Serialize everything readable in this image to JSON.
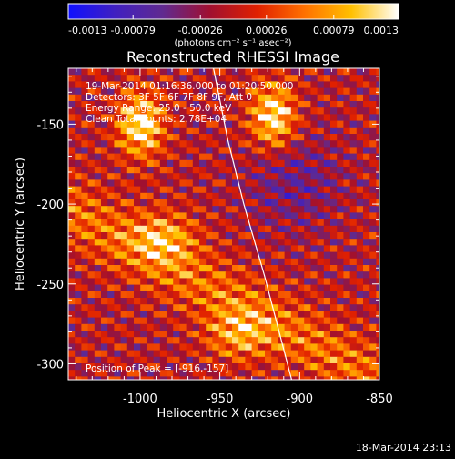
{
  "colorbar": {
    "tick_labels": [
      "-0.0013",
      "-0.00079",
      "-0.00026",
      "0.00026",
      "0.00079",
      "0.0013"
    ],
    "tick_values": [
      -0.0013,
      -0.00079,
      -0.00026,
      0.00026,
      0.00079,
      0.0013
    ],
    "range": [
      -0.0013,
      0.0013
    ],
    "units_label": "(photons cm⁻² s⁻¹ asec⁻²)",
    "colormap": [
      "#1010ff",
      "#4020c0",
      "#602a90",
      "#a01030",
      "#e02000",
      "#ff7000",
      "#ffc000",
      "#ffffff"
    ]
  },
  "chart_data": {
    "type": "heatmap",
    "title": "Reconstructed RHESSI Image",
    "xlabel": "Heliocentric X (arcsec)",
    "ylabel": "Heliocentric Y (arcsec)",
    "xlim": [
      -1045,
      -850
    ],
    "ylim": [
      -310,
      -115
    ],
    "xticks": [
      -1000,
      -950,
      -900,
      -850
    ],
    "xtick_labels": [
      "-1000",
      "-950",
      "-900",
      "-850"
    ],
    "yticks": [
      -300,
      -250,
      -200,
      -150
    ],
    "ytick_labels": [
      "-300",
      "-250",
      "-200",
      "-150"
    ],
    "limb_curve": [
      [
        -954,
        -115
      ],
      [
        -945,
        -160
      ],
      [
        -935,
        -200
      ],
      [
        -922,
        -245
      ],
      [
        -905,
        -310
      ]
    ],
    "peaks": [
      [
        -1000,
        -150
      ],
      [
        -918,
        -145
      ],
      [
        -940,
        -280
      ],
      [
        -985,
        -220
      ]
    ],
    "peak_position": [
      -916,
      -157
    ],
    "annotations": {
      "time_range": "19-Mar-2014 01:16:36.000 to 01:20:50.000",
      "detectors": "Detectors: 3F 5F 6F 7F 8F 9F, Att 0",
      "energy": "Energy Range: 25.0 - 50.0 keV",
      "clean": "Clean      Total counts: 2.78E+04",
      "peak": "Position of Peak = [-916,-157]"
    }
  },
  "footer": {
    "timestamp": "18-Mar-2014 23:13"
  }
}
